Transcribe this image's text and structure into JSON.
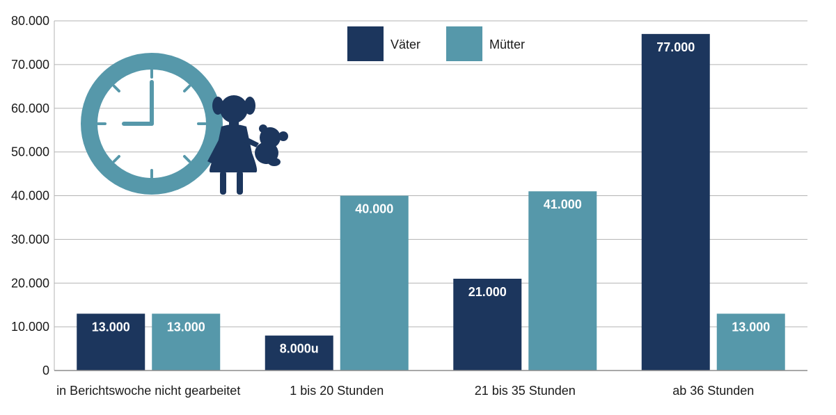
{
  "colors": {
    "vaeter": "#1c365d",
    "muetter": "#5698aa",
    "grid": "#b3b3b3",
    "icon_clock": "#5698aa",
    "icon_girl": "#1c365d"
  },
  "icons": [
    "clock-icon",
    "girl-with-teddy-icon"
  ],
  "chart_data": {
    "type": "bar",
    "categories": [
      "in Berichtswoche nicht gearbeitet",
      "1 bis 20 Stunden",
      "21 bis 35 Stunden",
      "ab 36 Stunden"
    ],
    "series": [
      {
        "name": "Väter",
        "values": [
          13000,
          8000,
          21000,
          77000
        ],
        "labels": [
          "13.000",
          "8.000u",
          "21.000",
          "77.000"
        ]
      },
      {
        "name": "Mütter",
        "values": [
          13000,
          40000,
          41000,
          13000
        ],
        "labels": [
          "13.000",
          "40.000",
          "41.000",
          "13.000"
        ]
      }
    ],
    "yticks": [
      0,
      10000,
      20000,
      30000,
      40000,
      50000,
      60000,
      70000,
      80000
    ],
    "ytick_labels": [
      "0",
      "10.000",
      "20.000",
      "30.000",
      "40.000",
      "50.000",
      "60.000",
      "70.000",
      "80.000"
    ],
    "ylim": [
      0,
      80000
    ],
    "grid": true,
    "legend_position": "top-center",
    "title": "",
    "xlabel": "",
    "ylabel": ""
  }
}
